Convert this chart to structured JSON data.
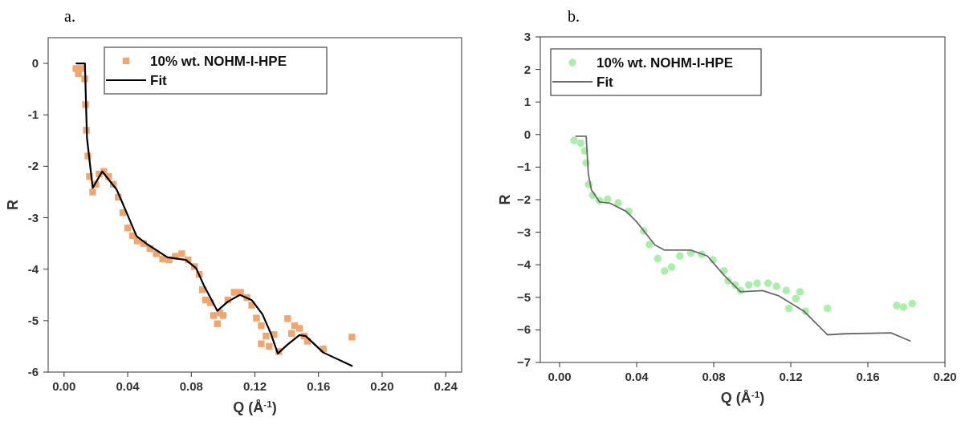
{
  "chart_data": [
    {
      "type": "scatter",
      "title": "a.",
      "xlabel": "Q (Å$^{-1}$)",
      "ylabel": "R",
      "xlim": [
        -0.01,
        0.25
      ],
      "ylim": [
        -6,
        0.5
      ],
      "xticks": [
        {
          "value": 0,
          "label": "0.00"
        },
        {
          "value": 0.04,
          "label": "0.04"
        },
        {
          "value": 0.08,
          "label": "0.08"
        },
        {
          "value": 0.12,
          "label": "0.12"
        },
        {
          "value": 0.16,
          "label": "0.16"
        },
        {
          "value": 0.2,
          "label": "0.20"
        },
        {
          "value": 0.24,
          "label": "0.24"
        }
      ],
      "yticks": [
        -6,
        -5,
        -4,
        -3,
        -2,
        -1,
        0
      ],
      "legend": "top",
      "series": [
        {
          "name": "10% wt. NOHM-I-HPE",
          "marker": "square",
          "color": "#f3a66b",
          "x": [
            0.0075,
            0.009,
            0.011,
            0.013,
            0.0135,
            0.014,
            0.015,
            0.016,
            0.018,
            0.02,
            0.022,
            0.025,
            0.028,
            0.031,
            0.034,
            0.037,
            0.04,
            0.043,
            0.046,
            0.05,
            0.054,
            0.058,
            0.062,
            0.066,
            0.07,
            0.074,
            0.078,
            0.082,
            0.085,
            0.087,
            0.089,
            0.092,
            0.094,
            0.0964,
            0.098,
            0.1,
            0.103,
            0.107,
            0.111,
            0.115,
            0.118,
            0.121,
            0.124,
            0.124,
            0.127,
            0.129,
            0.132,
            0.135,
            0.1406,
            0.143,
            0.145,
            0.148,
            0.151,
            0.153,
            0.163,
            0.181
          ],
          "values": [
            -0.1,
            -0.2,
            -0.1,
            -0.3,
            -0.8,
            -1.3,
            -1.8,
            -2.2,
            -2.5,
            -2.35,
            -2.15,
            -2.1,
            -2.2,
            -2.35,
            -2.6,
            -2.9,
            -3.2,
            -3.35,
            -3.45,
            -3.5,
            -3.6,
            -3.7,
            -3.8,
            -3.82,
            -3.75,
            -3.7,
            -3.82,
            -3.95,
            -4.1,
            -4.4,
            -4.6,
            -4.65,
            -4.9,
            -5.06,
            -4.85,
            -4.9,
            -4.6,
            -4.45,
            -4.45,
            -4.55,
            -4.7,
            -4.95,
            -5.1,
            -5.45,
            -5.3,
            -5.5,
            -5.27,
            -5.6,
            -4.96,
            -5.25,
            -5.1,
            -5.15,
            -5.3,
            -5.4,
            -5.55,
            -5.32
          ]
        },
        {
          "name": "Fit",
          "type": "line",
          "color": "#000000",
          "x": [
            0.0078,
            0.0131,
            0.0144,
            0.018,
            0.024,
            0.033,
            0.036,
            0.04,
            0.0456,
            0.053,
            0.065,
            0.0766,
            0.083,
            0.088,
            0.0964,
            0.103,
            0.1106,
            0.118,
            0.1248,
            0.13,
            0.1344,
            0.14,
            0.148,
            0.152,
            0.163,
            0.181
          ],
          "values": [
            0,
            0,
            -1.45,
            -2.42,
            -2.1,
            -2.45,
            -2.66,
            -2.95,
            -3.36,
            -3.53,
            -3.77,
            -3.82,
            -3.98,
            -4.32,
            -4.81,
            -4.63,
            -4.5,
            -4.6,
            -4.88,
            -5.25,
            -5.64,
            -5.48,
            -5.28,
            -5.3,
            -5.62,
            -5.88
          ]
        }
      ]
    },
    {
      "type": "scatter",
      "title": "b.",
      "xlabel": "Q (Å$^{-1}$)",
      "ylabel": "R",
      "xlim": [
        -0.01,
        0.2
      ],
      "ylim": [
        -7,
        3
      ],
      "xticks": [
        {
          "value": 0,
          "label": "0.00"
        },
        {
          "value": 0.04,
          "label": "0.04"
        },
        {
          "value": 0.08,
          "label": "0.08"
        },
        {
          "value": 0.12,
          "label": "0.12"
        },
        {
          "value": 0.16,
          "label": "0.16"
        },
        {
          "value": 0.2,
          "label": "0.20"
        }
      ],
      "yticks": [
        {
          "value": -7,
          "label": "−7"
        },
        {
          "value": -6,
          "label": "−6"
        },
        {
          "value": -5,
          "label": "−5"
        },
        {
          "value": -4,
          "label": "−4"
        },
        {
          "value": -3,
          "label": "−3"
        },
        {
          "value": -2,
          "label": "−2"
        },
        {
          "value": -1,
          "label": "−1"
        },
        0,
        1,
        2,
        3
      ],
      "legend": "top left",
      "series": [
        {
          "name": "10% wt. NOHM-I-HPE",
          "marker": "circle",
          "color": "#a8f0a8",
          "x": [
            0.0075,
            0.011,
            0.013,
            0.0138,
            0.0151,
            0.0172,
            0.0207,
            0.0249,
            0.0304,
            0.036,
            0.0437,
            0.0466,
            0.0509,
            0.0545,
            0.0581,
            0.0624,
            0.0681,
            0.0738,
            0.0796,
            0.0853,
            0.0874,
            0.0911,
            0.0939,
            0.0982,
            0.1025,
            0.1082,
            0.1126,
            0.1176,
            0.1248,
            0.1226,
            0.119,
            0.1276,
            0.139,
            0.175,
            0.1785,
            0.183
          ],
          "values": [
            -0.18,
            -0.26,
            -0.5,
            -0.87,
            -1.53,
            -1.86,
            -2.03,
            -1.99,
            -2.1,
            -2.36,
            -2.96,
            -3.38,
            -3.81,
            -4.19,
            -4.07,
            -3.73,
            -3.64,
            -3.68,
            -3.85,
            -4.19,
            -4.49,
            -4.62,
            -4.79,
            -4.62,
            -4.57,
            -4.57,
            -4.66,
            -4.79,
            -4.83,
            -5.04,
            -5.34,
            -5.43,
            -5.34,
            -5.25,
            -5.3,
            -5.19
          ]
        },
        {
          "name": "Fit",
          "type": "line",
          "color": "#6b6b6b",
          "x": [
            0.0085,
            0.0138,
            0.0149,
            0.0165,
            0.0207,
            0.0262,
            0.0346,
            0.04,
            0.0495,
            0.0545,
            0.068,
            0.0767,
            0.0853,
            0.0939,
            0.1054,
            0.114,
            0.1269,
            0.139,
            0.148,
            0.172,
            0.182
          ],
          "values": [
            -0.05,
            -0.05,
            -1.2,
            -1.7,
            -2.07,
            -2.11,
            -2.36,
            -2.68,
            -3.39,
            -3.55,
            -3.55,
            -3.73,
            -4.32,
            -4.83,
            -4.79,
            -4.96,
            -5.43,
            -6.15,
            -6.12,
            -6.09,
            -6.34
          ]
        }
      ]
    }
  ]
}
